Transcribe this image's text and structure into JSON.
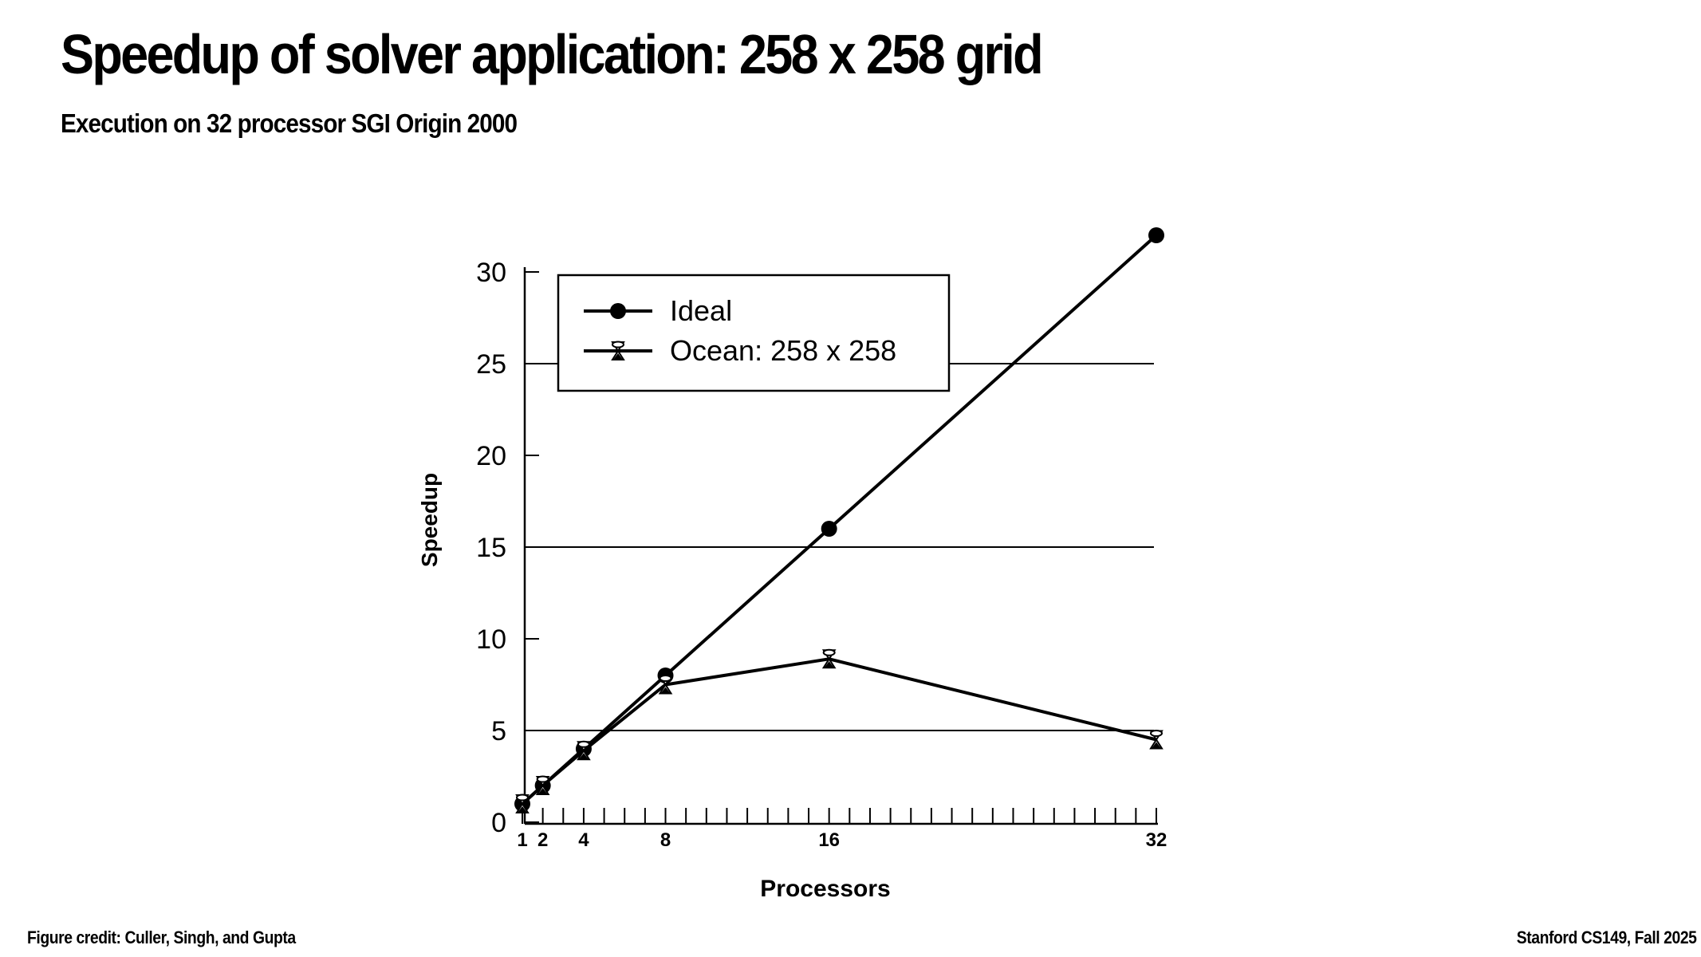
{
  "slide": {
    "title": "Speedup of solver application: 258 x 258 grid",
    "subtitle": "Execution on 32 processor SGI Origin 2000",
    "footer_left": "Figure credit: Culler, Singh, and Gupta",
    "footer_right": "Stanford CS149, Fall 2025"
  },
  "chart_data": {
    "type": "line",
    "xlabel": "Processors",
    "ylabel": "Speedup",
    "xlim": [
      1,
      32
    ],
    "ylim": [
      0,
      32
    ],
    "x_ticks": [
      1,
      2,
      4,
      8,
      16,
      32
    ],
    "y_ticks": [
      0,
      5,
      10,
      15,
      20,
      25,
      30
    ],
    "grid_lines_y": [
      5,
      15,
      25
    ],
    "legend_position": "top-left",
    "series": [
      {
        "name": "Ideal",
        "marker": "filled-circle",
        "color": "#000000",
        "x": [
          1,
          2,
          4,
          8,
          16,
          32
        ],
        "y": [
          1,
          2,
          4,
          8,
          16,
          32
        ]
      },
      {
        "name": "Ocean: 258 x 258",
        "marker": "hourglass",
        "color": "#000000",
        "x": [
          1,
          2,
          4,
          8,
          16,
          32
        ],
        "y": [
          1,
          2,
          3.9,
          7.5,
          8.9,
          4.5
        ]
      }
    ]
  }
}
